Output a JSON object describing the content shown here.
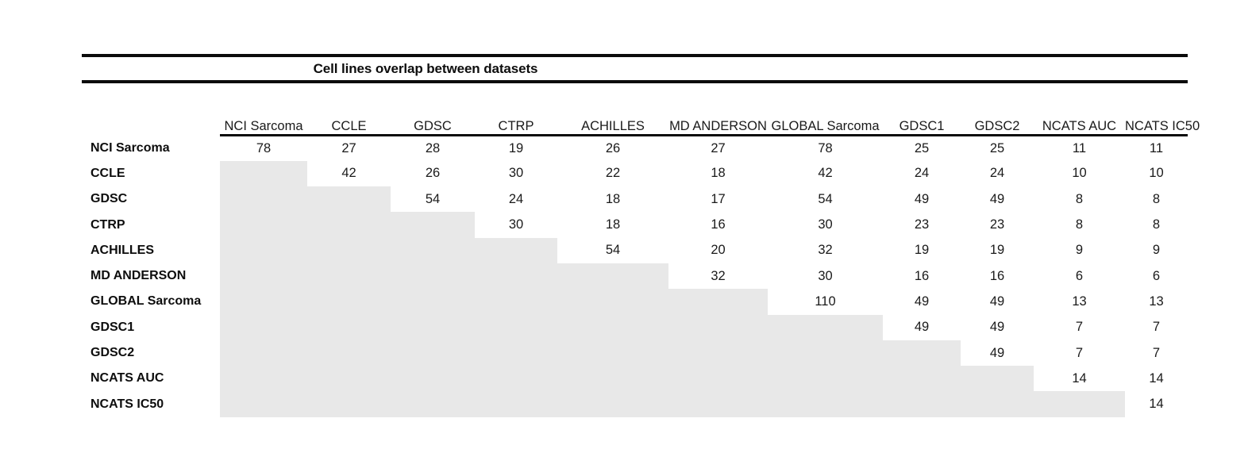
{
  "title": "Cell lines overlap between datasets",
  "colors": {
    "shaded_lower_triangle": "#e8e8e8",
    "rule": "#0b0b0b",
    "text": "#141414"
  },
  "chart_data": {
    "type": "table",
    "title": "Cell lines overlap between datasets",
    "description": "Upper-triangular matrix of cell line overlap counts between datasets; lower triangle shaded gray; diagonal counts bold",
    "columns": [
      "NCI Sarcoma",
      "CCLE",
      "GDSC",
      "CTRP",
      "ACHILLES",
      "MD ANDERSON",
      "GLOBAL Sarcoma",
      "GDSC1",
      "GDSC2",
      "NCATS AUC",
      "NCATS IC50"
    ],
    "rows": [
      {
        "label": "NCI Sarcoma",
        "values": [
          78,
          27,
          28,
          19,
          26,
          27,
          78,
          25,
          25,
          11,
          11
        ]
      },
      {
        "label": "CCLE",
        "values": [
          null,
          42,
          26,
          30,
          22,
          18,
          42,
          24,
          24,
          10,
          10
        ]
      },
      {
        "label": "GDSC",
        "values": [
          null,
          null,
          54,
          24,
          18,
          17,
          54,
          49,
          49,
          8,
          8
        ]
      },
      {
        "label": "CTRP",
        "values": [
          null,
          null,
          null,
          30,
          18,
          16,
          30,
          23,
          23,
          8,
          8
        ]
      },
      {
        "label": "ACHILLES",
        "values": [
          null,
          null,
          null,
          null,
          54,
          20,
          32,
          19,
          19,
          9,
          9
        ]
      },
      {
        "label": "MD ANDERSON",
        "values": [
          null,
          null,
          null,
          null,
          null,
          32,
          30,
          16,
          16,
          6,
          6
        ]
      },
      {
        "label": "GLOBAL Sarcoma",
        "values": [
          null,
          null,
          null,
          null,
          null,
          null,
          110,
          49,
          49,
          13,
          13
        ]
      },
      {
        "label": "GDSC1",
        "values": [
          null,
          null,
          null,
          null,
          null,
          null,
          null,
          49,
          49,
          7,
          7
        ]
      },
      {
        "label": "GDSC2",
        "values": [
          null,
          null,
          null,
          null,
          null,
          null,
          null,
          null,
          49,
          7,
          7
        ]
      },
      {
        "label": "NCATS AUC",
        "values": [
          null,
          null,
          null,
          null,
          null,
          null,
          null,
          null,
          null,
          14,
          14
        ]
      },
      {
        "label": "NCATS IC50",
        "values": [
          null,
          null,
          null,
          null,
          null,
          null,
          null,
          null,
          null,
          null,
          14
        ]
      }
    ],
    "diagonal_bold": true,
    "extra_bold_cells": [
      [
        7,
        9
      ],
      [
        8,
        10
      ]
    ],
    "layout_hints": {
      "lower_triangle": "shaded gray, no values",
      "header_underline": "spans data columns only",
      "title_rules": "thick horizontal rules above and below title"
    }
  }
}
